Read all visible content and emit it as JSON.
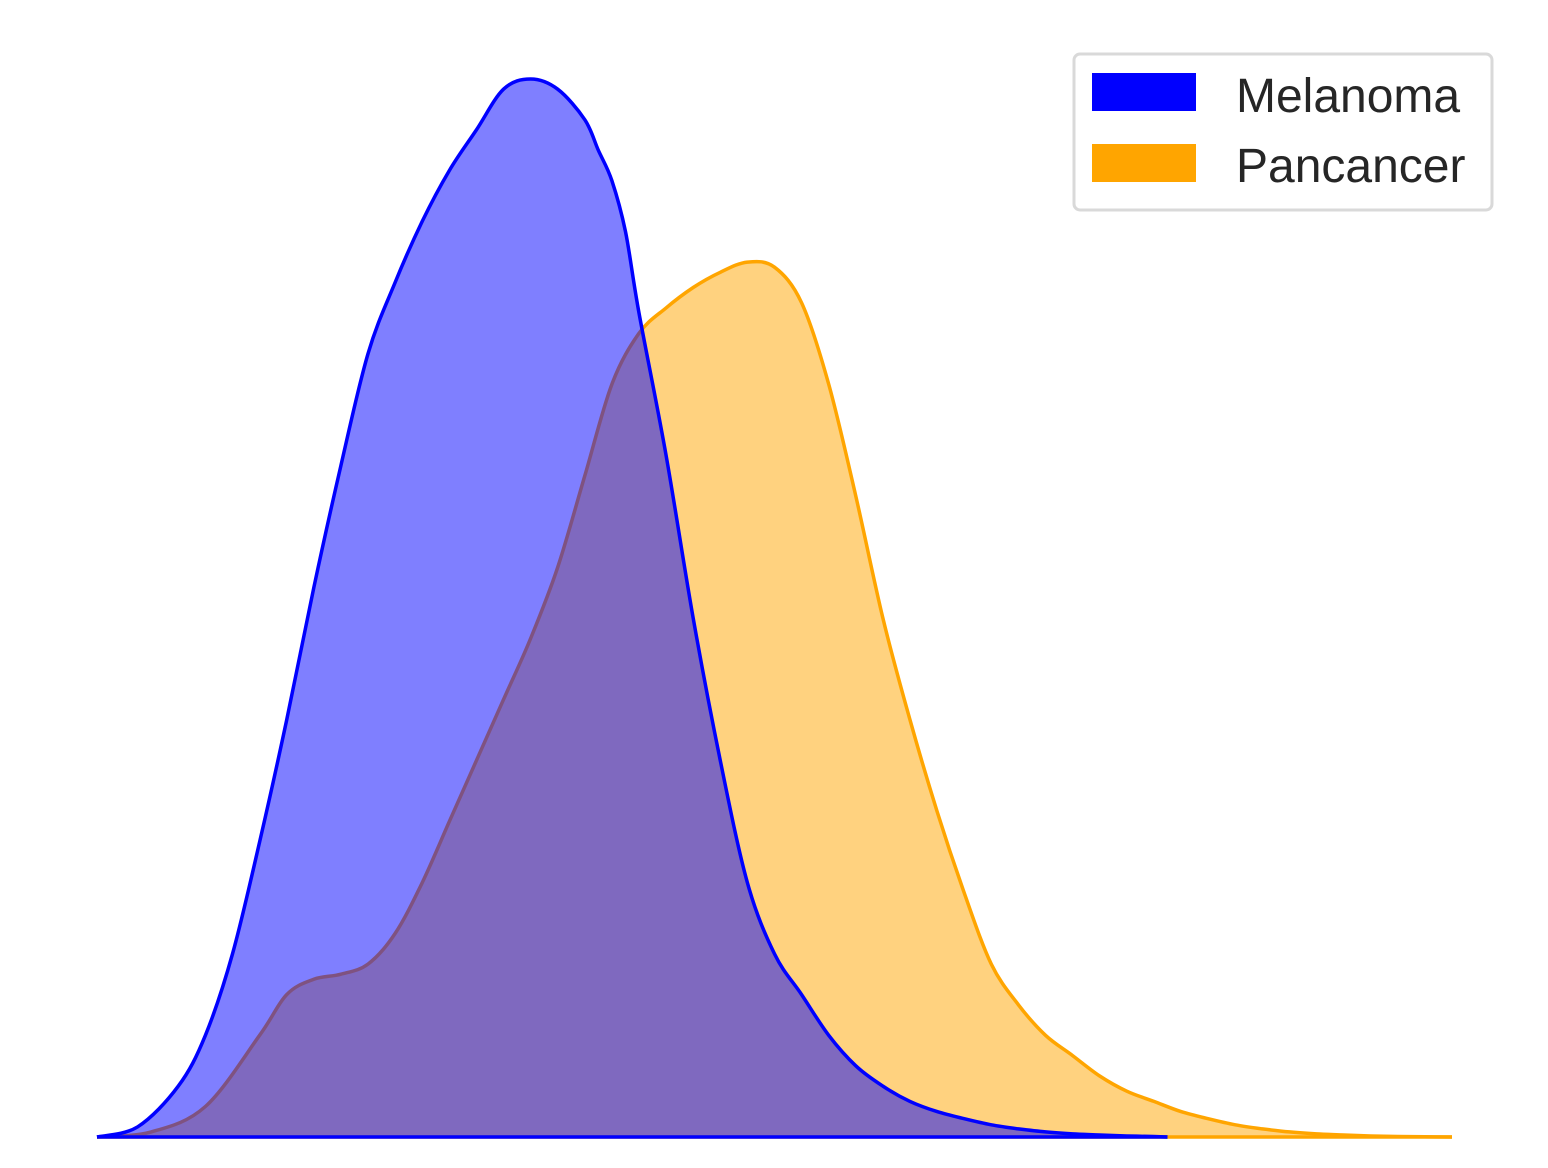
{
  "chart_data": {
    "type": "area",
    "title": "",
    "xlabel": "",
    "ylabel": "",
    "axes_visible": false,
    "grid": false,
    "legend_position": "top-right",
    "xlim": [
      0,
      1
    ],
    "ylim": [
      0,
      1.04
    ],
    "series": [
      {
        "name": "Melanoma",
        "color": "#0000ff",
        "fill_color": "#8080ff",
        "x": [
          0.0,
          0.03,
          0.06,
          0.08,
          0.1,
          0.12,
          0.14,
          0.16,
          0.18,
          0.2,
          0.22,
          0.24,
          0.26,
          0.28,
          0.3,
          0.32,
          0.34,
          0.36,
          0.37,
          0.38,
          0.39,
          0.4,
          0.42,
          0.44,
          0.46,
          0.48,
          0.5,
          0.52,
          0.54,
          0.56,
          0.58,
          0.6,
          0.62,
          0.64,
          0.66,
          0.68,
          0.7,
          0.72,
          0.74,
          0.76,
          0.78,
          0.79
        ],
        "y": [
          0.0,
          0.01,
          0.05,
          0.1,
          0.18,
          0.29,
          0.41,
          0.54,
          0.66,
          0.77,
          0.84,
          0.9,
          0.95,
          0.99,
          1.03,
          1.04,
          1.03,
          1.0,
          0.97,
          0.94,
          0.89,
          0.81,
          0.67,
          0.51,
          0.37,
          0.25,
          0.18,
          0.14,
          0.1,
          0.07,
          0.05,
          0.035,
          0.025,
          0.018,
          0.012,
          0.008,
          0.005,
          0.003,
          0.002,
          0.001,
          0.0005,
          0.0
        ]
      },
      {
        "name": "Pancancer",
        "color": "#ffa500",
        "fill_color": "#ffd27f",
        "x": [
          0.0,
          0.04,
          0.08,
          0.12,
          0.14,
          0.16,
          0.18,
          0.2,
          0.22,
          0.24,
          0.26,
          0.28,
          0.3,
          0.32,
          0.34,
          0.36,
          0.38,
          0.4,
          0.42,
          0.44,
          0.46,
          0.48,
          0.5,
          0.52,
          0.54,
          0.56,
          0.58,
          0.6,
          0.62,
          0.64,
          0.66,
          0.68,
          0.7,
          0.72,
          0.74,
          0.76,
          0.78,
          0.8,
          0.82,
          0.84,
          0.86,
          0.88,
          0.9,
          0.92,
          0.94,
          0.96,
          0.98,
          1.0
        ],
        "y": [
          0.0,
          0.005,
          0.03,
          0.1,
          0.14,
          0.155,
          0.16,
          0.17,
          0.2,
          0.25,
          0.31,
          0.37,
          0.43,
          0.49,
          0.56,
          0.65,
          0.74,
          0.79,
          0.815,
          0.835,
          0.85,
          0.86,
          0.855,
          0.82,
          0.74,
          0.63,
          0.51,
          0.41,
          0.32,
          0.24,
          0.17,
          0.13,
          0.1,
          0.08,
          0.06,
          0.045,
          0.035,
          0.025,
          0.018,
          0.012,
          0.008,
          0.005,
          0.003,
          0.002,
          0.001,
          0.0005,
          0.0002,
          0.0
        ]
      }
    ]
  }
}
